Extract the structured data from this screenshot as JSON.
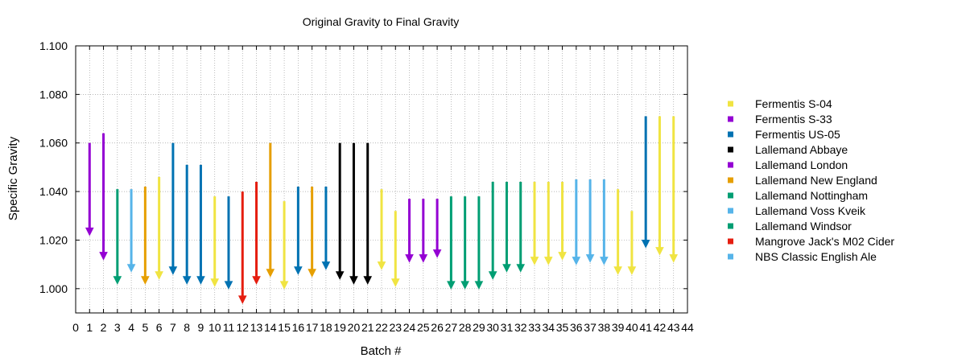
{
  "chart_data": {
    "type": "arrow",
    "title": "Original Gravity to Final Gravity",
    "xlabel": "Batch #",
    "ylabel": "Specific Gravity",
    "xlim": [
      0,
      44
    ],
    "ylim": [
      0.99,
      1.1
    ],
    "x_ticks": [
      0,
      1,
      2,
      3,
      4,
      5,
      6,
      7,
      8,
      9,
      10,
      11,
      12,
      13,
      14,
      15,
      16,
      17,
      18,
      19,
      20,
      21,
      22,
      23,
      24,
      25,
      26,
      27,
      28,
      29,
      30,
      31,
      32,
      33,
      34,
      35,
      36,
      37,
      38,
      39,
      40,
      41,
      42,
      43,
      44
    ],
    "y_ticks": [
      "1.000",
      "1.020",
      "1.040",
      "1.060",
      "1.080",
      "1.100"
    ],
    "grid": true,
    "legend_position": "right",
    "series": [
      {
        "name": "Fermentis S-04",
        "color": "#f0e442",
        "points": [
          {
            "batch": 6,
            "og": 1.046,
            "fg": 1.004
          },
          {
            "batch": 10,
            "og": 1.038,
            "fg": 1.001
          },
          {
            "batch": 15,
            "og": 1.036,
            "fg": 1.0
          },
          {
            "batch": 22,
            "og": 1.041,
            "fg": 1.008
          },
          {
            "batch": 23,
            "og": 1.032,
            "fg": 1.001
          },
          {
            "batch": 33,
            "og": 1.044,
            "fg": 1.01
          },
          {
            "batch": 34,
            "og": 1.044,
            "fg": 1.01
          },
          {
            "batch": 35,
            "og": 1.044,
            "fg": 1.012
          },
          {
            "batch": 39,
            "og": 1.041,
            "fg": 1.006
          },
          {
            "batch": 40,
            "og": 1.032,
            "fg": 1.006
          },
          {
            "batch": 42,
            "og": 1.071,
            "fg": 1.014
          },
          {
            "batch": 43,
            "og": 1.071,
            "fg": 1.011
          }
        ]
      },
      {
        "name": "Fermentis S-33",
        "color": "#9400d3",
        "points": [
          {
            "batch": 1,
            "og": 1.06,
            "fg": 1.022
          },
          {
            "batch": 2,
            "og": 1.064,
            "fg": 1.012
          }
        ]
      },
      {
        "name": "Fermentis US-05",
        "color": "#0072b2",
        "points": [
          {
            "batch": 7,
            "og": 1.06,
            "fg": 1.006
          },
          {
            "batch": 8,
            "og": 1.051,
            "fg": 1.002
          },
          {
            "batch": 9,
            "og": 1.051,
            "fg": 1.002
          },
          {
            "batch": 11,
            "og": 1.038,
            "fg": 1.0
          },
          {
            "batch": 16,
            "og": 1.042,
            "fg": 1.006
          },
          {
            "batch": 18,
            "og": 1.042,
            "fg": 1.008
          },
          {
            "batch": 41,
            "og": 1.071,
            "fg": 1.017
          }
        ]
      },
      {
        "name": "Lallemand Abbaye",
        "color": "#000000",
        "points": [
          {
            "batch": 19,
            "og": 1.06,
            "fg": 1.004
          },
          {
            "batch": 20,
            "og": 1.06,
            "fg": 1.002
          },
          {
            "batch": 21,
            "og": 1.06,
            "fg": 1.002
          }
        ]
      },
      {
        "name": "Lallemand London",
        "color": "#9400d3",
        "points": [
          {
            "batch": 24,
            "og": 1.037,
            "fg": 1.011
          },
          {
            "batch": 25,
            "og": 1.037,
            "fg": 1.011
          },
          {
            "batch": 26,
            "og": 1.037,
            "fg": 1.013
          }
        ]
      },
      {
        "name": "Lallemand New England",
        "color": "#e69f00",
        "points": [
          {
            "batch": 5,
            "og": 1.042,
            "fg": 1.002
          },
          {
            "batch": 14,
            "og": 1.06,
            "fg": 1.005
          },
          {
            "batch": 17,
            "og": 1.042,
            "fg": 1.005
          }
        ]
      },
      {
        "name": "Lallemand Nottingham",
        "color": "#009e73",
        "points": [
          {
            "batch": 27,
            "og": 1.038,
            "fg": 1.0
          },
          {
            "batch": 28,
            "og": 1.038,
            "fg": 1.0
          },
          {
            "batch": 29,
            "og": 1.038,
            "fg": 1.0
          }
        ]
      },
      {
        "name": "Lallemand Voss Kveik",
        "color": "#56b4e9",
        "points": [
          {
            "batch": 4,
            "og": 1.041,
            "fg": 1.007
          },
          {
            "batch": 36,
            "og": 1.045,
            "fg": 1.01
          },
          {
            "batch": 37,
            "og": 1.045,
            "fg": 1.011
          },
          {
            "batch": 38,
            "og": 1.045,
            "fg": 1.01
          }
        ]
      },
      {
        "name": "Lallemand Windsor",
        "color": "#009e73",
        "points": [
          {
            "batch": 3,
            "og": 1.041,
            "fg": 1.002
          },
          {
            "batch": 30,
            "og": 1.044,
            "fg": 1.004
          },
          {
            "batch": 31,
            "og": 1.044,
            "fg": 1.007
          },
          {
            "batch": 32,
            "og": 1.044,
            "fg": 1.007
          }
        ]
      },
      {
        "name": "Mangrove Jack's M02 Cider",
        "color": "#e51e10",
        "points": [
          {
            "batch": 12,
            "og": 1.04,
            "fg": 0.994
          },
          {
            "batch": 13,
            "og": 1.044,
            "fg": 1.002
          }
        ]
      },
      {
        "name": "NBS Classic English Ale",
        "color": "#56b4e9",
        "points": []
      }
    ]
  }
}
